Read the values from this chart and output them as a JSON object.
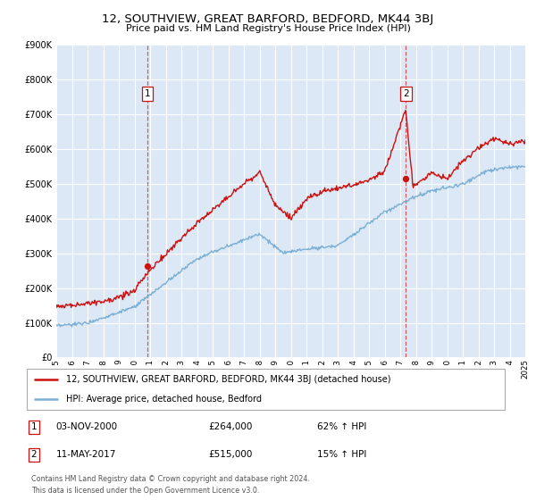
{
  "title": "12, SOUTHVIEW, GREAT BARFORD, BEDFORD, MK44 3BJ",
  "subtitle": "Price paid vs. HM Land Registry's House Price Index (HPI)",
  "background_color": "#ffffff",
  "plot_bg_color": "#dce8f5",
  "grid_color": "#ffffff",
  "hpi_color": "#7bafd4",
  "price_color": "#cc1111",
  "sale1_date_num": 2000.84,
  "sale1_price": 264000,
  "sale1_label": "03-NOV-2000",
  "sale1_pct": "62% ↑ HPI",
  "sale2_date_num": 2017.36,
  "sale2_price": 515000,
  "sale2_label": "11-MAY-2017",
  "sale2_pct": "15% ↑ HPI",
  "xmin": 1995,
  "xmax": 2025,
  "ymin": 0,
  "ymax": 900000,
  "yticks": [
    0,
    100000,
    200000,
    300000,
    400000,
    500000,
    600000,
    700000,
    800000,
    900000
  ],
  "ytick_labels": [
    "£0",
    "£100K",
    "£200K",
    "£300K",
    "£400K",
    "£500K",
    "£600K",
    "£700K",
    "£800K",
    "£900K"
  ],
  "legend_entry1": "12, SOUTHVIEW, GREAT BARFORD, BEDFORD, MK44 3BJ (detached house)",
  "legend_entry2": "HPI: Average price, detached house, Bedford",
  "footer": "Contains HM Land Registry data © Crown copyright and database right 2024.\nThis data is licensed under the Open Government Licence v3.0."
}
